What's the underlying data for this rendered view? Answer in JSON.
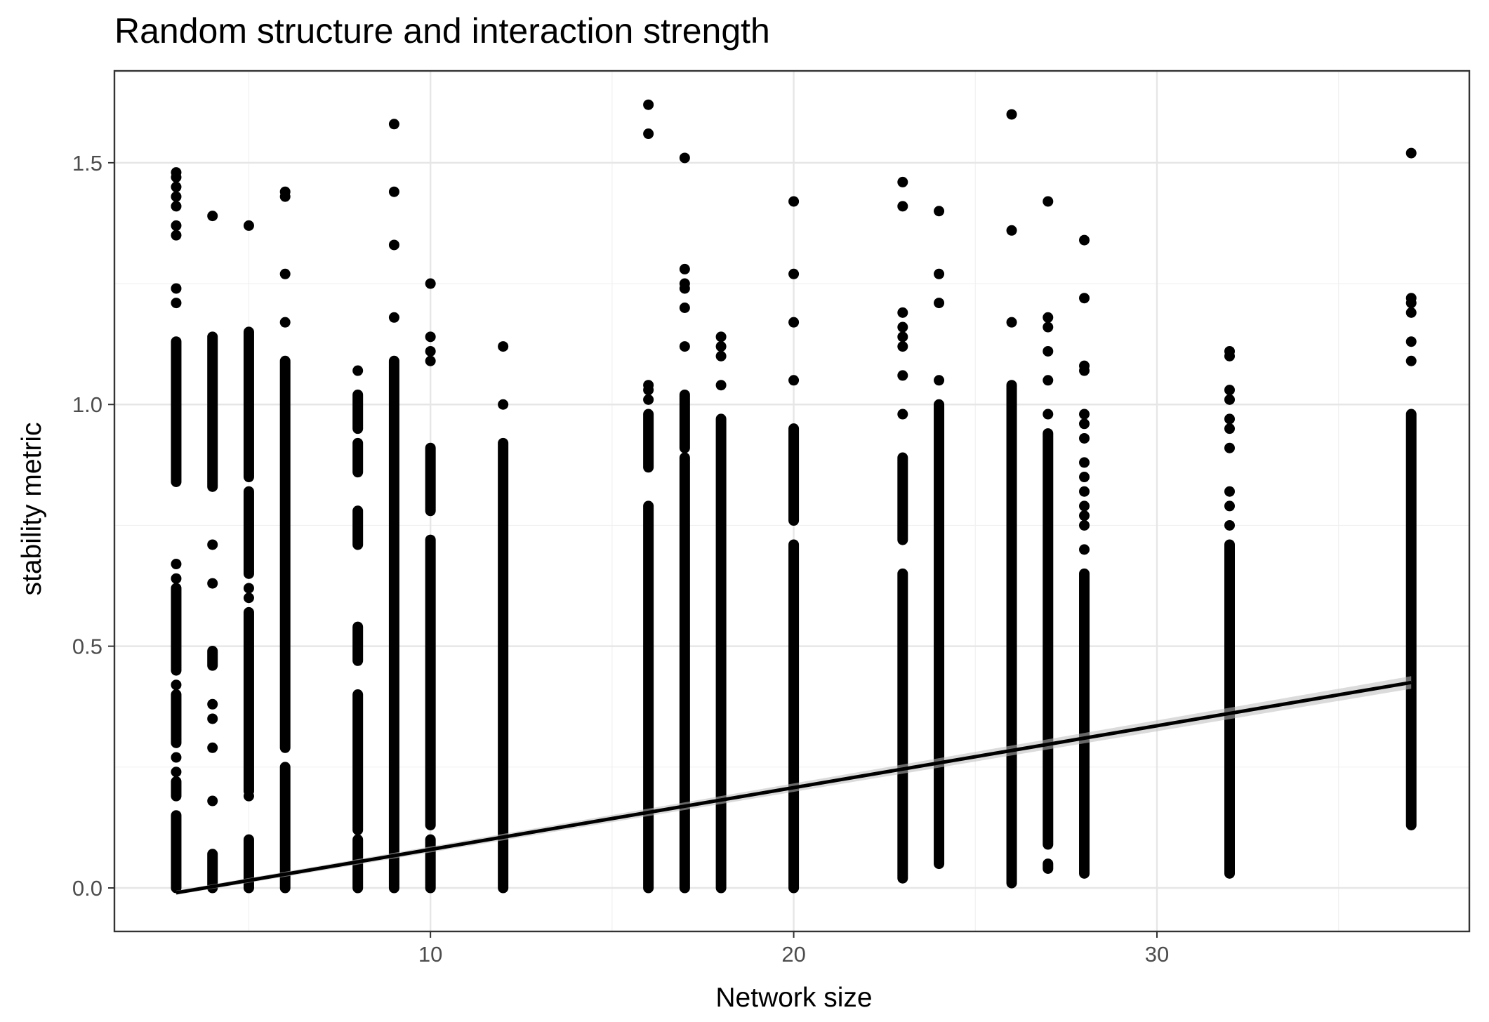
{
  "chart_data": {
    "type": "scatter",
    "title": "Random structure and interaction strength",
    "xlabel": "Network size",
    "ylabel": "stability metric",
    "xlim": [
      1.3,
      38.6
    ],
    "ylim": [
      -0.09,
      1.69
    ],
    "x_ticks": [
      10,
      20,
      30
    ],
    "x_tick_labels": [
      "10",
      "20",
      "30"
    ],
    "y_ticks": [
      0.0,
      0.5,
      1.0,
      1.5
    ],
    "y_tick_labels": [
      "0.0",
      "0.5",
      "1.0",
      "1.5"
    ],
    "grid": true,
    "legend": "none",
    "point_color": "#000000",
    "line_color": "#000000",
    "ribbon_color": "#bdbdbd",
    "trend_line": {
      "x": [
        3,
        37
      ],
      "y": [
        -0.01,
        0.425
      ]
    },
    "series": [
      {
        "x": 3,
        "dense": [
          [
            0.0,
            0.15
          ],
          [
            0.19,
            0.22
          ],
          [
            0.3,
            0.4
          ],
          [
            0.45,
            0.62
          ],
          [
            0.84,
            1.13
          ]
        ],
        "y": [
          0.24,
          0.27,
          0.42,
          0.64,
          0.67,
          1.21,
          1.24,
          1.35,
          1.37,
          1.41,
          1.43,
          1.45,
          1.47,
          1.48
        ]
      },
      {
        "x": 4,
        "dense": [
          [
            0.0,
            0.07
          ],
          [
            0.46,
            0.49
          ],
          [
            0.83,
            1.14
          ]
        ],
        "y": [
          0.18,
          0.29,
          0.35,
          0.38,
          0.63,
          0.71,
          1.39
        ]
      },
      {
        "x": 5,
        "dense": [
          [
            0.0,
            0.1
          ],
          [
            0.2,
            0.57
          ],
          [
            0.65,
            0.82
          ],
          [
            0.85,
            1.15
          ]
        ],
        "y": [
          0.19,
          0.6,
          0.62,
          1.37
        ]
      },
      {
        "x": 6,
        "dense": [
          [
            0.0,
            0.25
          ],
          [
            0.29,
            1.09
          ]
        ],
        "y": [
          1.17,
          1.27,
          1.43,
          1.44
        ]
      },
      {
        "x": 8,
        "dense": [
          [
            0.0,
            0.1
          ],
          [
            0.12,
            0.4
          ],
          [
            0.47,
            0.54
          ],
          [
            0.71,
            0.78
          ],
          [
            0.86,
            0.92
          ],
          [
            0.95,
            1.02
          ]
        ],
        "y": [
          1.07
        ]
      },
      {
        "x": 9,
        "dense": [
          [
            0.0,
            1.09
          ]
        ],
        "y": [
          1.18,
          1.33,
          1.44,
          1.58
        ]
      },
      {
        "x": 10,
        "dense": [
          [
            0.0,
            0.1
          ],
          [
            0.13,
            0.72
          ],
          [
            0.78,
            0.91
          ]
        ],
        "y": [
          1.09,
          1.11,
          1.14,
          1.25
        ]
      },
      {
        "x": 12,
        "dense": [
          [
            0.0,
            0.92
          ]
        ],
        "y": [
          1.0,
          1.12
        ]
      },
      {
        "x": 16,
        "dense": [
          [
            0.0,
            0.79
          ],
          [
            0.87,
            0.98
          ]
        ],
        "y": [
          1.01,
          1.03,
          1.04,
          1.56,
          1.62
        ]
      },
      {
        "x": 17,
        "dense": [
          [
            0.0,
            0.89
          ],
          [
            0.91,
            1.02
          ]
        ],
        "y": [
          1.12,
          1.2,
          1.24,
          1.25,
          1.28,
          1.51
        ]
      },
      {
        "x": 18,
        "dense": [
          [
            0.0,
            0.97
          ]
        ],
        "y": [
          1.04,
          1.1,
          1.12,
          1.14
        ]
      },
      {
        "x": 20,
        "dense": [
          [
            0.0,
            0.71
          ],
          [
            0.76,
            0.95
          ]
        ],
        "y": [
          1.05,
          1.17,
          1.27,
          1.42
        ]
      },
      {
        "x": 23,
        "dense": [
          [
            0.02,
            0.65
          ],
          [
            0.72,
            0.89
          ]
        ],
        "y": [
          0.98,
          1.06,
          1.12,
          1.14,
          1.16,
          1.19,
          1.41,
          1.46
        ]
      },
      {
        "x": 24,
        "dense": [
          [
            0.05,
            1.0
          ]
        ],
        "y": [
          1.05,
          1.21,
          1.27,
          1.4
        ]
      },
      {
        "x": 26,
        "dense": [
          [
            0.01,
            1.04
          ]
        ],
        "y": [
          1.17,
          1.36,
          1.6
        ]
      },
      {
        "x": 27,
        "dense": [
          [
            0.04,
            0.05
          ],
          [
            0.09,
            0.94
          ]
        ],
        "y": [
          0.98,
          1.05,
          1.11,
          1.16,
          1.18,
          1.42
        ]
      },
      {
        "x": 28,
        "dense": [
          [
            0.03,
            0.65
          ]
        ],
        "y": [
          0.7,
          0.75,
          0.77,
          0.79,
          0.82,
          0.85,
          0.88,
          0.93,
          0.96,
          0.98,
          1.07,
          1.08,
          1.22,
          1.34
        ]
      },
      {
        "x": 32,
        "dense": [
          [
            0.03,
            0.71
          ]
        ],
        "y": [
          0.75,
          0.79,
          0.82,
          0.91,
          0.95,
          0.97,
          1.01,
          1.03,
          1.1,
          1.11
        ]
      },
      {
        "x": 37,
        "dense": [
          [
            0.13,
            0.98
          ]
        ],
        "y": [
          1.09,
          1.13,
          1.19,
          1.21,
          1.22,
          1.52
        ]
      }
    ]
  }
}
